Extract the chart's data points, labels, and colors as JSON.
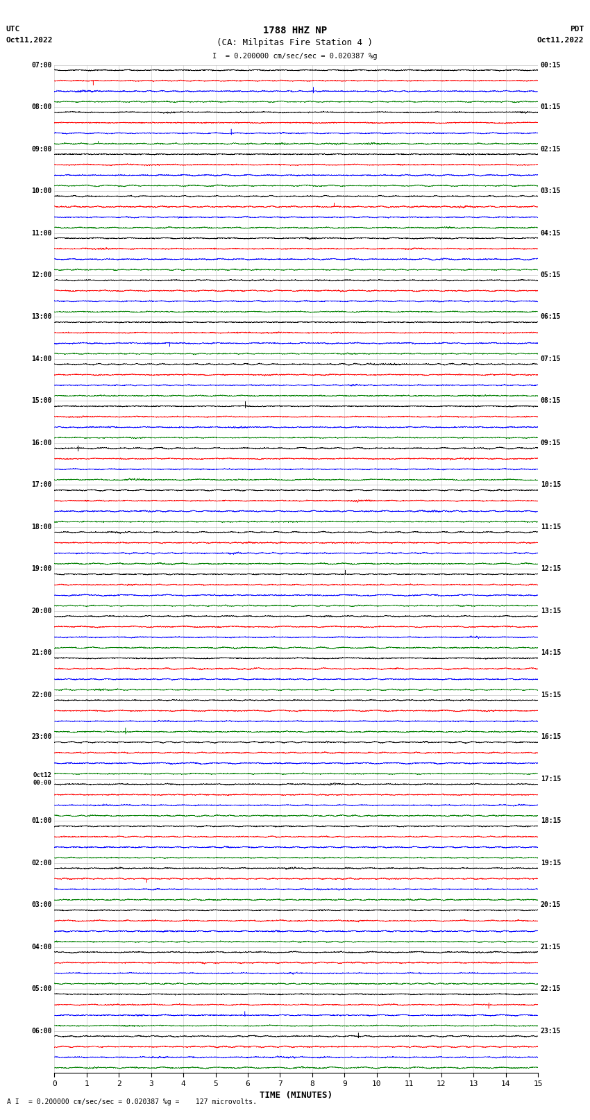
{
  "title_line1": "1788 HHZ NP",
  "title_line2": "(CA: Milpitas Fire Station 4 )",
  "utc_label": "UTC",
  "utc_date": "Oct11,2022",
  "pdt_label": "PDT",
  "pdt_date": "Oct11,2022",
  "scale_text": "= 0.200000 cm/sec/sec = 0.020387 %g",
  "bottom_text": "= 0.200000 cm/sec/sec = 0.020387 %g =    127 microvolts.",
  "xlabel": "TIME (MINUTES)",
  "xlim": [
    0,
    15
  ],
  "xticks": [
    0,
    1,
    2,
    3,
    4,
    5,
    6,
    7,
    8,
    9,
    10,
    11,
    12,
    13,
    14,
    15
  ],
  "colors": [
    "black",
    "red",
    "blue",
    "green"
  ],
  "background_color": "#ffffff",
  "n_rows": 96,
  "figsize": [
    8.5,
    16.13
  ],
  "dpi": 100,
  "left_times": [
    "07:00",
    "",
    "",
    "",
    "08:00",
    "",
    "",
    "",
    "09:00",
    "",
    "",
    "",
    "10:00",
    "",
    "",
    "",
    "11:00",
    "",
    "",
    "",
    "12:00",
    "",
    "",
    "",
    "13:00",
    "",
    "",
    "",
    "14:00",
    "",
    "",
    "",
    "15:00",
    "",
    "",
    "",
    "16:00",
    "",
    "",
    "",
    "17:00",
    "",
    "",
    "",
    "18:00",
    "",
    "",
    "",
    "19:00",
    "",
    "",
    "",
    "20:00",
    "",
    "",
    "",
    "21:00",
    "",
    "",
    "",
    "22:00",
    "",
    "",
    "",
    "23:00",
    "",
    "",
    "",
    "Oct12",
    "",
    "",
    "",
    "01:00",
    "",
    "",
    "",
    "02:00",
    "",
    "",
    "",
    "03:00",
    "",
    "",
    "",
    "04:00",
    "",
    "",
    "",
    "05:00",
    "",
    "",
    "",
    "06:00",
    "",
    ""
  ],
  "left_times_oct12": "00:00",
  "right_times": [
    "00:15",
    "",
    "",
    "",
    "01:15",
    "",
    "",
    "",
    "02:15",
    "",
    "",
    "",
    "03:15",
    "",
    "",
    "",
    "04:15",
    "",
    "",
    "",
    "05:15",
    "",
    "",
    "",
    "06:15",
    "",
    "",
    "",
    "07:15",
    "",
    "",
    "",
    "08:15",
    "",
    "",
    "",
    "09:15",
    "",
    "",
    "",
    "10:15",
    "",
    "",
    "",
    "11:15",
    "",
    "",
    "",
    "12:15",
    "",
    "",
    "",
    "13:15",
    "",
    "",
    "",
    "14:15",
    "",
    "",
    "",
    "15:15",
    "",
    "",
    "",
    "16:15",
    "",
    "",
    "",
    "17:15",
    "",
    "",
    "",
    "18:15",
    "",
    "",
    "",
    "19:15",
    "",
    "",
    "",
    "20:15",
    "",
    "",
    "",
    "21:15",
    "",
    "",
    "",
    "22:15",
    "",
    "",
    "",
    "23:15",
    "",
    ""
  ],
  "grid_color": "#aaaaaa",
  "separator_color": "#999999"
}
